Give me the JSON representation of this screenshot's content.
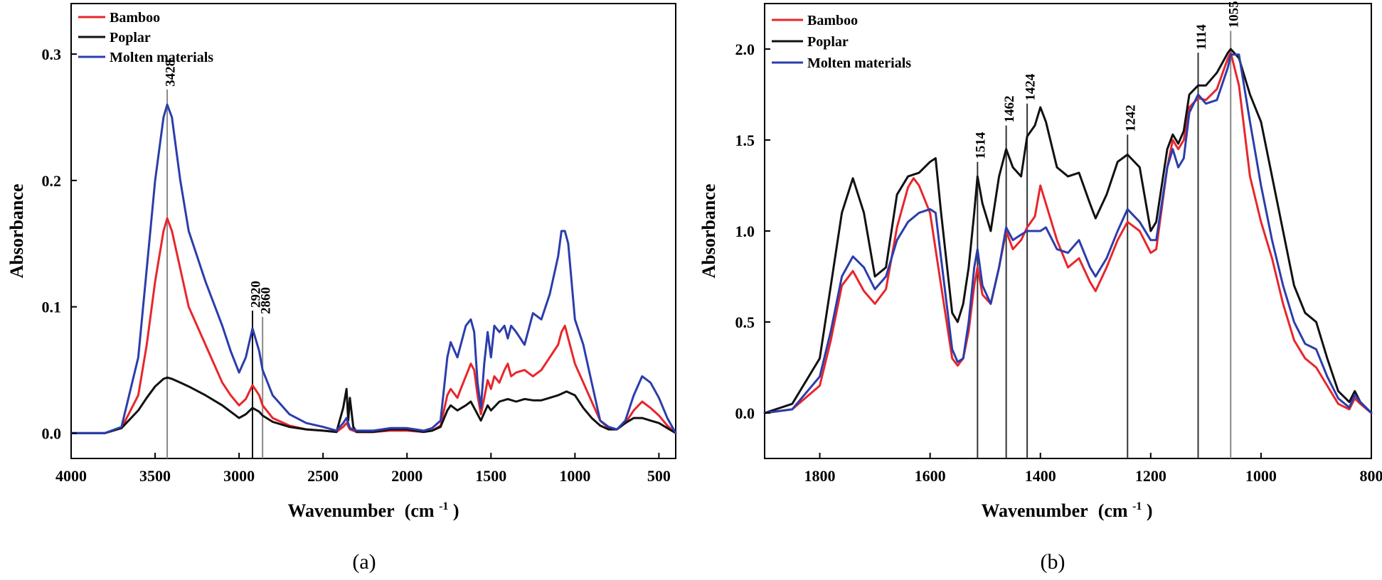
{
  "chart_data": [
    {
      "type": "line",
      "panel": "a",
      "caption": "(a)",
      "xlabel": "Wavenumber",
      "xlabel_unit": "(cm",
      "xlabel_sup": "-1",
      "xlabel_close": ")",
      "ylabel": "Absorbance",
      "xlim": [
        4000,
        400
      ],
      "ylim": [
        -0.02,
        0.34
      ],
      "xticks": [
        4000,
        3500,
        3000,
        2500,
        2000,
        1500,
        1000,
        500
      ],
      "xtick_labels": [
        "4000",
        "3500",
        "3000",
        "2500",
        "2000",
        "1500",
        "1000",
        "500"
      ],
      "yticks": [
        0.0,
        0.1,
        0.2,
        0.3
      ],
      "ytick_labels": [
        "0.0",
        "0.1",
        "0.2",
        "0.3"
      ],
      "legend_position": "top-left",
      "annotations": [
        {
          "x": 3428,
          "label": "3428",
          "y_top": 0.272,
          "color": "#888888"
        },
        {
          "x": 2920,
          "label": "2920",
          "y_top": 0.097,
          "color": "#000000"
        },
        {
          "x": 2860,
          "label": "2860",
          "y_top": 0.092,
          "color": "#888888"
        }
      ],
      "series": [
        {
          "name": "Bamboo",
          "color": "#e8262b",
          "x": [
            4000,
            3800,
            3700,
            3600,
            3550,
            3500,
            3450,
            3428,
            3400,
            3350,
            3300,
            3200,
            3100,
            3050,
            3000,
            2960,
            2920,
            2880,
            2860,
            2800,
            2700,
            2600,
            2500,
            2420,
            2380,
            2360,
            2340,
            2300,
            2200,
            2100,
            2000,
            1900,
            1850,
            1800,
            1760,
            1740,
            1700,
            1680,
            1650,
            1620,
            1600,
            1580,
            1560,
            1540,
            1520,
            1500,
            1480,
            1450,
            1420,
            1400,
            1380,
            1350,
            1300,
            1250,
            1200,
            1150,
            1100,
            1080,
            1060,
            1040,
            1020,
            1000,
            950,
            900,
            850,
            800,
            750,
            700,
            650,
            600,
            550,
            500,
            450,
            400
          ],
          "y": [
            0,
            0,
            0.004,
            0.03,
            0.07,
            0.12,
            0.16,
            0.17,
            0.16,
            0.13,
            0.1,
            0.07,
            0.04,
            0.03,
            0.022,
            0.027,
            0.038,
            0.03,
            0.022,
            0.012,
            0.006,
            0.003,
            0.002,
            0.001,
            0.005,
            0.008,
            0.003,
            0.001,
            0.001,
            0.002,
            0.002,
            0.001,
            0.002,
            0.006,
            0.03,
            0.035,
            0.028,
            0.035,
            0.045,
            0.055,
            0.05,
            0.03,
            0.015,
            0.028,
            0.042,
            0.035,
            0.045,
            0.04,
            0.05,
            0.055,
            0.045,
            0.048,
            0.05,
            0.045,
            0.05,
            0.06,
            0.07,
            0.08,
            0.085,
            0.075,
            0.065,
            0.055,
            0.04,
            0.025,
            0.01,
            0.004,
            0.003,
            0.008,
            0.018,
            0.025,
            0.02,
            0.014,
            0.006,
            0
          ]
        },
        {
          "name": "Poplar",
          "color": "#111111",
          "x": [
            4000,
            3800,
            3700,
            3600,
            3550,
            3500,
            3450,
            3428,
            3400,
            3350,
            3300,
            3200,
            3100,
            3050,
            3000,
            2960,
            2920,
            2880,
            2860,
            2800,
            2700,
            2600,
            2500,
            2420,
            2380,
            2360,
            2350,
            2340,
            2320,
            2300,
            2200,
            2100,
            2000,
            1900,
            1850,
            1800,
            1760,
            1740,
            1700,
            1650,
            1620,
            1600,
            1580,
            1560,
            1540,
            1520,
            1500,
            1450,
            1400,
            1350,
            1300,
            1250,
            1200,
            1150,
            1100,
            1050,
            1000,
            950,
            900,
            850,
            800,
            750,
            700,
            650,
            600,
            550,
            500,
            450,
            400
          ],
          "y": [
            0,
            0,
            0.004,
            0.018,
            0.028,
            0.037,
            0.043,
            0.044,
            0.043,
            0.04,
            0.037,
            0.03,
            0.022,
            0.017,
            0.012,
            0.015,
            0.02,
            0.017,
            0.014,
            0.009,
            0.005,
            0.003,
            0.002,
            0.001,
            0.02,
            0.035,
            0.01,
            0.028,
            0.005,
            0.001,
            0.001,
            0.003,
            0.003,
            0.001,
            0.002,
            0.005,
            0.018,
            0.022,
            0.018,
            0.022,
            0.025,
            0.02,
            0.015,
            0.01,
            0.016,
            0.022,
            0.018,
            0.025,
            0.027,
            0.025,
            0.027,
            0.026,
            0.026,
            0.028,
            0.03,
            0.033,
            0.03,
            0.02,
            0.012,
            0.006,
            0.003,
            0.003,
            0.008,
            0.012,
            0.012,
            0.01,
            0.008,
            0.004,
            0
          ]
        },
        {
          "name": "Molten materials",
          "color": "#2b3dab",
          "x": [
            4000,
            3800,
            3700,
            3600,
            3550,
            3500,
            3450,
            3428,
            3400,
            3350,
            3300,
            3200,
            3100,
            3050,
            3000,
            2960,
            2920,
            2880,
            2860,
            2800,
            2700,
            2600,
            2500,
            2420,
            2380,
            2360,
            2340,
            2300,
            2200,
            2100,
            2000,
            1900,
            1850,
            1800,
            1760,
            1740,
            1700,
            1680,
            1650,
            1620,
            1600,
            1580,
            1560,
            1540,
            1520,
            1500,
            1480,
            1450,
            1420,
            1400,
            1380,
            1350,
            1300,
            1250,
            1200,
            1150,
            1100,
            1080,
            1060,
            1040,
            1020,
            1000,
            950,
            900,
            850,
            800,
            750,
            700,
            650,
            600,
            550,
            500,
            450,
            400
          ],
          "y": [
            0,
            0,
            0.005,
            0.06,
            0.13,
            0.2,
            0.25,
            0.26,
            0.25,
            0.2,
            0.16,
            0.12,
            0.085,
            0.065,
            0.048,
            0.06,
            0.083,
            0.065,
            0.05,
            0.03,
            0.015,
            0.008,
            0.005,
            0.002,
            0.008,
            0.012,
            0.004,
            0.002,
            0.002,
            0.004,
            0.004,
            0.002,
            0.004,
            0.01,
            0.06,
            0.072,
            0.06,
            0.07,
            0.085,
            0.09,
            0.08,
            0.04,
            0.02,
            0.055,
            0.08,
            0.06,
            0.085,
            0.08,
            0.085,
            0.075,
            0.085,
            0.08,
            0.07,
            0.095,
            0.09,
            0.11,
            0.14,
            0.16,
            0.16,
            0.15,
            0.12,
            0.09,
            0.07,
            0.04,
            0.01,
            0.005,
            0.003,
            0.01,
            0.03,
            0.045,
            0.04,
            0.028,
            0.012,
            0
          ]
        }
      ]
    },
    {
      "type": "line",
      "panel": "b",
      "caption": "(b)",
      "xlabel": "Wavenumber",
      "xlabel_unit": "(cm",
      "xlabel_sup": "-1",
      "xlabel_close": ")",
      "ylabel": "Absorbance",
      "xlim": [
        1900,
        800
      ],
      "ylim": [
        -0.25,
        2.25
      ],
      "xticks": [
        1800,
        1600,
        1400,
        1200,
        1000,
        800
      ],
      "xtick_labels": [
        "1800",
        "1600",
        "1400",
        "1200",
        "1000",
        "800"
      ],
      "yticks": [
        0.0,
        0.5,
        1.0,
        1.5,
        2.0
      ],
      "ytick_labels": [
        "0.0",
        "0.5",
        "1.0",
        "1.5",
        "2.0"
      ],
      "legend_position": "top-left",
      "annotations": [
        {
          "x": 1514,
          "label": "1514",
          "y_top": 1.38,
          "color": "#333333"
        },
        {
          "x": 1462,
          "label": "1462",
          "y_top": 1.58,
          "color": "#333333"
        },
        {
          "x": 1424,
          "label": "1424",
          "y_top": 1.7,
          "color": "#333333"
        },
        {
          "x": 1242,
          "label": "1242",
          "y_top": 1.53,
          "color": "#333333"
        },
        {
          "x": 1114,
          "label": "1114",
          "y_top": 1.98,
          "color": "#333333"
        },
        {
          "x": 1055,
          "label": "1055",
          "y_top": 2.1,
          "color": "#888888"
        }
      ],
      "series": [
        {
          "name": "Bamboo",
          "color": "#e8262b",
          "x": [
            1900,
            1850,
            1800,
            1780,
            1760,
            1740,
            1720,
            1700,
            1680,
            1660,
            1640,
            1630,
            1620,
            1600,
            1580,
            1560,
            1550,
            1540,
            1530,
            1520,
            1514,
            1505,
            1490,
            1475,
            1462,
            1450,
            1435,
            1424,
            1410,
            1400,
            1390,
            1370,
            1350,
            1330,
            1310,
            1300,
            1280,
            1260,
            1242,
            1220,
            1200,
            1190,
            1170,
            1160,
            1150,
            1140,
            1130,
            1114,
            1100,
            1080,
            1060,
            1055,
            1040,
            1020,
            1000,
            980,
            960,
            940,
            920,
            900,
            880,
            860,
            840,
            830,
            820,
            800
          ],
          "y": [
            0,
            0.02,
            0.15,
            0.4,
            0.7,
            0.78,
            0.67,
            0.6,
            0.68,
            1.02,
            1.24,
            1.29,
            1.25,
            1.1,
            0.7,
            0.3,
            0.26,
            0.3,
            0.45,
            0.7,
            0.8,
            0.65,
            0.6,
            0.8,
            1.0,
            0.9,
            0.95,
            1.02,
            1.08,
            1.25,
            1.15,
            0.95,
            0.8,
            0.85,
            0.72,
            0.67,
            0.8,
            0.95,
            1.05,
            1.0,
            0.88,
            0.9,
            1.35,
            1.5,
            1.45,
            1.5,
            1.68,
            1.73,
            1.72,
            1.78,
            1.95,
            1.98,
            1.8,
            1.3,
            1.05,
            0.85,
            0.6,
            0.4,
            0.3,
            0.25,
            0.15,
            0.05,
            0.02,
            0.08,
            0.05,
            0
          ]
        },
        {
          "name": "Poplar",
          "color": "#111111",
          "x": [
            1900,
            1850,
            1800,
            1780,
            1760,
            1740,
            1720,
            1700,
            1680,
            1660,
            1640,
            1620,
            1600,
            1590,
            1580,
            1560,
            1550,
            1540,
            1530,
            1520,
            1514,
            1505,
            1490,
            1475,
            1462,
            1450,
            1435,
            1424,
            1410,
            1400,
            1390,
            1370,
            1350,
            1330,
            1310,
            1300,
            1280,
            1260,
            1242,
            1220,
            1200,
            1190,
            1170,
            1160,
            1150,
            1140,
            1130,
            1114,
            1100,
            1080,
            1060,
            1055,
            1040,
            1020,
            1000,
            980,
            960,
            940,
            920,
            900,
            880,
            860,
            840,
            830,
            820,
            800
          ],
          "y": [
            0,
            0.05,
            0.3,
            0.7,
            1.1,
            1.29,
            1.1,
            0.75,
            0.8,
            1.2,
            1.3,
            1.32,
            1.38,
            1.4,
            1.1,
            0.55,
            0.5,
            0.6,
            0.8,
            1.1,
            1.3,
            1.15,
            1.0,
            1.3,
            1.45,
            1.35,
            1.3,
            1.52,
            1.58,
            1.68,
            1.6,
            1.35,
            1.3,
            1.32,
            1.15,
            1.07,
            1.2,
            1.38,
            1.42,
            1.35,
            1.0,
            1.05,
            1.45,
            1.53,
            1.48,
            1.55,
            1.75,
            1.8,
            1.8,
            1.87,
            1.98,
            2.0,
            1.95,
            1.75,
            1.6,
            1.3,
            1.0,
            0.7,
            0.55,
            0.5,
            0.3,
            0.12,
            0.06,
            0.12,
            0.06,
            0
          ]
        },
        {
          "name": "Molten materials",
          "color": "#2b3dab",
          "x": [
            1900,
            1850,
            1800,
            1780,
            1760,
            1740,
            1720,
            1700,
            1680,
            1660,
            1640,
            1620,
            1600,
            1590,
            1580,
            1560,
            1550,
            1540,
            1530,
            1520,
            1514,
            1505,
            1490,
            1475,
            1462,
            1450,
            1435,
            1424,
            1410,
            1400,
            1390,
            1370,
            1350,
            1330,
            1310,
            1300,
            1280,
            1260,
            1242,
            1220,
            1200,
            1190,
            1170,
            1160,
            1150,
            1140,
            1130,
            1114,
            1100,
            1080,
            1060,
            1055,
            1040,
            1020,
            1000,
            980,
            960,
            940,
            920,
            900,
            880,
            860,
            840,
            830,
            820,
            800
          ],
          "y": [
            0,
            0.02,
            0.2,
            0.45,
            0.75,
            0.86,
            0.8,
            0.68,
            0.75,
            0.95,
            1.05,
            1.1,
            1.12,
            1.1,
            0.85,
            0.35,
            0.28,
            0.3,
            0.5,
            0.8,
            0.9,
            0.7,
            0.6,
            0.8,
            1.02,
            0.95,
            0.98,
            1.0,
            1.0,
            1.0,
            1.02,
            0.9,
            0.88,
            0.95,
            0.8,
            0.75,
            0.85,
            1.0,
            1.12,
            1.05,
            0.95,
            0.95,
            1.35,
            1.45,
            1.35,
            1.4,
            1.65,
            1.75,
            1.7,
            1.72,
            1.9,
            1.97,
            1.97,
            1.6,
            1.25,
            0.95,
            0.7,
            0.5,
            0.38,
            0.35,
            0.2,
            0.08,
            0.03,
            0.1,
            0.06,
            0
          ]
        }
      ]
    }
  ]
}
